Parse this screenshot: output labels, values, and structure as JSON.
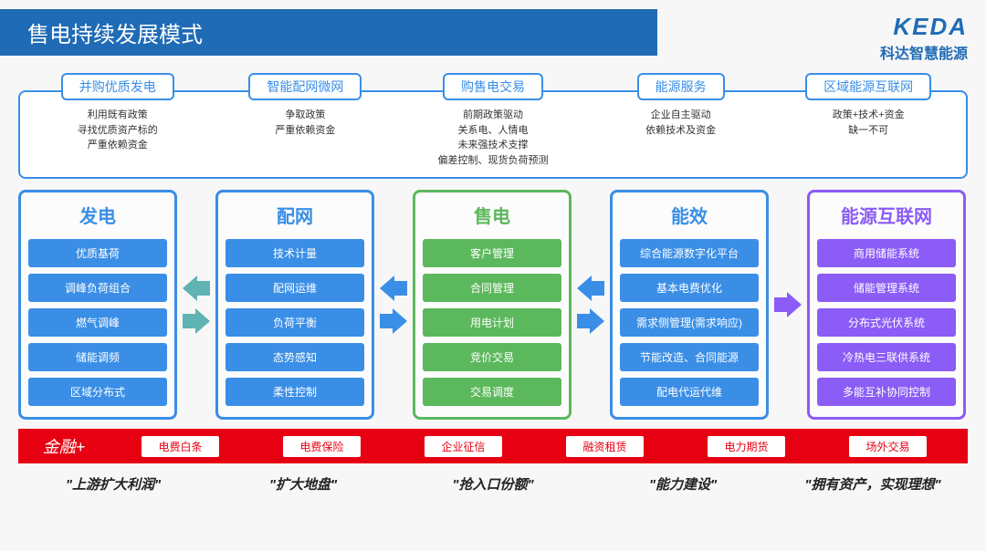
{
  "title": "售电持续发展模式",
  "logo": {
    "main": "KEDA",
    "sub": "科达智慧能源"
  },
  "colors": {
    "header_bg": "#1f6bb5",
    "top_border": "#3a8ee6",
    "finance_bg": "#e60012",
    "col1": "#3a8ee6",
    "col2": "#3a8ee6",
    "col3": "#5cb85c",
    "col4": "#3a8ee6",
    "col5": "#8b5cf6",
    "arrow12": "#5fb3b3",
    "arrow23": "#3a8ee6",
    "arrow34": "#3a8ee6",
    "arrow45": "#8b5cf6"
  },
  "top": [
    {
      "title": "并购优质发电",
      "desc": "利用既有政策\n寻找优质资产标的\n严重依赖资金"
    },
    {
      "title": "智能配网微网",
      "desc": "争取政策\n严重依赖资金"
    },
    {
      "title": "购售电交易",
      "desc": "前期政策驱动\n关系电、人情电\n未来强技术支撑\n偏差控制、现货负荷预测"
    },
    {
      "title": "能源服务",
      "desc": "企业自主驱动\n依赖技术及资金"
    },
    {
      "title": "区域能源互联网",
      "desc": "政策+技术+资金\n缺一不可"
    }
  ],
  "cols": [
    {
      "title": "发电",
      "items": [
        "优质基荷",
        "调峰负荷组合",
        "燃气调峰",
        "储能调频",
        "区域分布式"
      ]
    },
    {
      "title": "配网",
      "items": [
        "技术计量",
        "配网运维",
        "负荷平衡",
        "态势感知",
        "柔性控制"
      ]
    },
    {
      "title": "售电",
      "items": [
        "客户管理",
        "合同管理",
        "用电计划",
        "竞价交易",
        "交易调度"
      ]
    },
    {
      "title": "能效",
      "items": [
        "综合能源数字化平台",
        "基本电费优化",
        "需求侧管理(需求响应)",
        "节能改造、合同能源",
        "配电代运代维"
      ]
    },
    {
      "title": "能源互联网",
      "items": [
        "商用储能系统",
        "储能管理系统",
        "分布式光伏系统",
        "冷热电三联供系统",
        "多能互补协同控制"
      ]
    }
  ],
  "finance": {
    "label": "金融+",
    "items": [
      "电费白条",
      "电费保险",
      "企业征信",
      "融资租赁",
      "电力期货",
      "场外交易"
    ]
  },
  "quotes": [
    "\"上游扩大利润\"",
    "\"扩大地盘\"",
    "\"抢入口份额\"",
    "\"能力建设\"",
    "\"拥有资产，实现理想\""
  ]
}
